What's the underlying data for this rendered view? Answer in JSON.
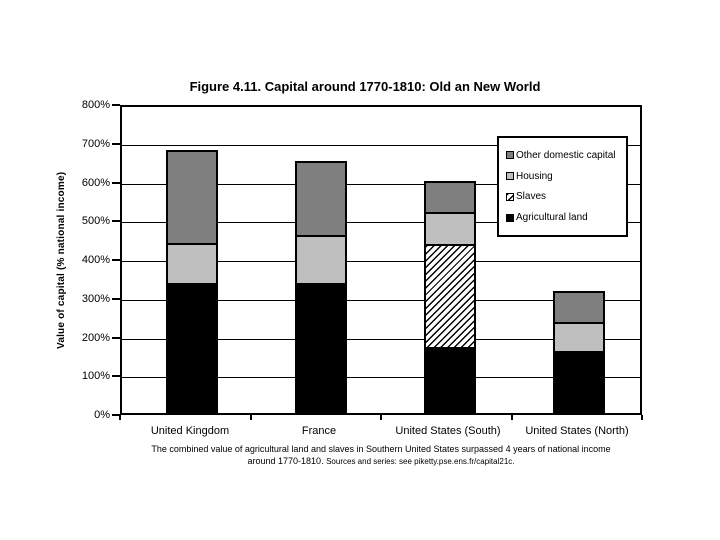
{
  "page": {
    "background": "#ffffff"
  },
  "header": {
    "title": "Figure 4.11. Capital around 1770-1810: Old an New World"
  },
  "footnote": {
    "line1": "The combined value of agricultural land and slaves in Southern United States surpassed 4 years of national income",
    "line2_lead": "around 1770-1810.",
    "line2_source": "Sources and series: see piketty.pse.ens.fr/capital21c."
  },
  "chart_data": {
    "type": "bar",
    "subtype": "stacked-vertical",
    "title": "Figure 4.11. Capital around 1770-1810: Old an New World",
    "xlabel": "",
    "ylabel": "Value of capital (% national income)",
    "ylim": [
      0,
      800
    ],
    "ytick_step": 100,
    "ytick_suffix": "%",
    "grid": "horizontal",
    "categories": [
      "United Kingdom",
      "France",
      "United States (South)",
      "United States (North)"
    ],
    "series": [
      {
        "name": "Agricultural land",
        "values": [
          335,
          335,
          170,
          160
        ],
        "color": "#000000",
        "pattern": "solid"
      },
      {
        "name": "Slaves",
        "values": [
          0,
          0,
          265,
          0
        ],
        "color": "#ffffff",
        "pattern": "diagonal-hatch"
      },
      {
        "name": "Housing",
        "values": [
          105,
          125,
          85,
          75
        ],
        "color": "#bfbfbf",
        "pattern": "solid"
      },
      {
        "name": "Other domestic capital",
        "values": [
          240,
          190,
          80,
          80
        ],
        "color": "#7f7f7f",
        "pattern": "solid"
      }
    ],
    "totals": [
      680,
      650,
      600,
      315
    ],
    "legend": {
      "position": "top-right-inside-plot",
      "items_top_to_bottom": [
        "Other domestic capital",
        "Housing",
        "Slaves",
        "Agricultural land"
      ]
    }
  }
}
